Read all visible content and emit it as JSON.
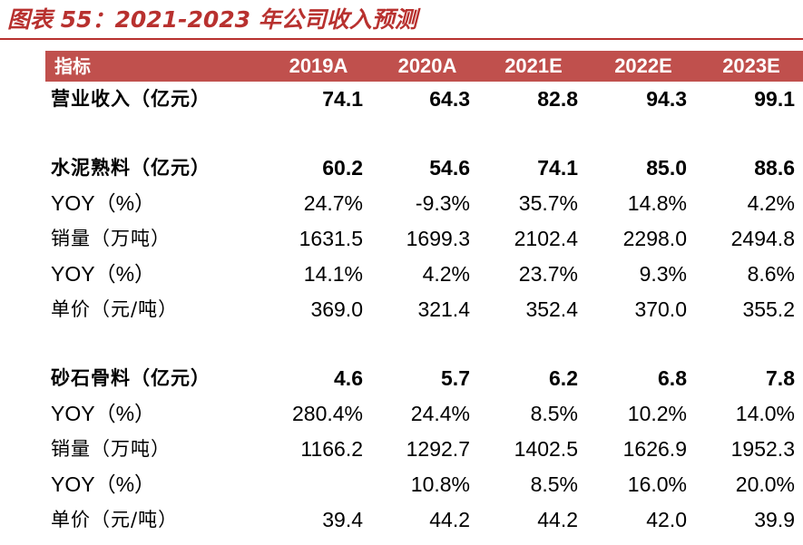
{
  "title": "图表 55：2021-2023 年公司收入预测",
  "header": {
    "label": "指标",
    "years": [
      "2019A",
      "2020A",
      "2021E",
      "2022E",
      "2023E"
    ]
  },
  "rows": [
    {
      "label": "营业收入（亿元）",
      "values": [
        "74.1",
        "64.3",
        "82.8",
        "94.3",
        "99.1"
      ]
    },
    {
      "label": "水泥熟料（亿元）",
      "values": [
        "60.2",
        "54.6",
        "74.1",
        "85.0",
        "88.6"
      ]
    },
    {
      "label": "YOY（%）",
      "values": [
        "24.7%",
        "-9.3%",
        "35.7%",
        "14.8%",
        "4.2%"
      ]
    },
    {
      "label": "销量（万吨）",
      "values": [
        "1631.5",
        "1699.3",
        "2102.4",
        "2298.0",
        "2494.8"
      ]
    },
    {
      "label": "YOY（%）",
      "values": [
        "14.1%",
        "4.2%",
        "23.7%",
        "9.3%",
        "8.6%"
      ]
    },
    {
      "label": "单价（元/吨）",
      "values": [
        "369.0",
        "321.4",
        "352.4",
        "370.0",
        "355.2"
      ]
    },
    {
      "label": "砂石骨料（亿元）",
      "values": [
        "4.6",
        "5.7",
        "6.2",
        "6.8",
        "7.8"
      ]
    },
    {
      "label": "YOY（%）",
      "values": [
        "280.4%",
        "24.4%",
        "8.5%",
        "10.2%",
        "14.0%"
      ]
    },
    {
      "label": "销量（万吨）",
      "values": [
        "1166.2",
        "1292.7",
        "1402.5",
        "1626.9",
        "1952.3"
      ]
    },
    {
      "label": "YOY（%）",
      "values": [
        "",
        "10.8%",
        "8.5%",
        "16.0%",
        "20.0%"
      ]
    },
    {
      "label": "单价（元/吨）",
      "values": [
        "39.4",
        "44.2",
        "44.2",
        "42.0",
        "39.9"
      ]
    }
  ],
  "colors": {
    "accent": "#c0504d",
    "title": "#b8312f"
  }
}
